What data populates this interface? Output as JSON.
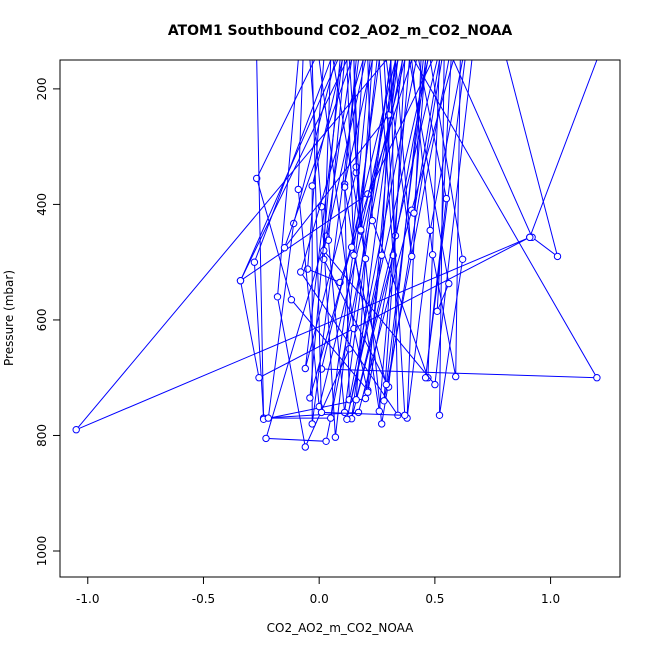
{
  "chart_data": {
    "type": "line",
    "title": "ATOM1 Southbound CO2_AO2_m_CO2_NOAA",
    "xlabel": "CO2_AO2_m_CO2_NOAA",
    "ylabel": "Pressure (mbar)",
    "xlim": [
      -1.12,
      1.3
    ],
    "ylim": [
      1045,
      150
    ],
    "y_reversed": true,
    "grid": false,
    "legend": "none",
    "colors": {
      "series": "#0000ff",
      "axes": "#000000"
    },
    "x_ticks": [
      {
        "value": -1.0,
        "label": "-1.0"
      },
      {
        "value": -0.5,
        "label": "-0.5"
      },
      {
        "value": 0.0,
        "label": "0.0"
      },
      {
        "value": 0.5,
        "label": "0.5"
      },
      {
        "value": 1.0,
        "label": "1.0"
      }
    ],
    "y_ticks": [
      {
        "value": 200,
        "label": "200"
      },
      {
        "value": 400,
        "label": "400"
      },
      {
        "value": 600,
        "label": "600"
      },
      {
        "value": 800,
        "label": "800"
      },
      {
        "value": 1000,
        "label": "1000"
      }
    ],
    "series": [
      {
        "values": [
          [
            -0.09,
            150
          ],
          [
            -0.18,
            560
          ],
          [
            -0.06,
            820
          ],
          [
            0.13,
            650
          ],
          [
            0.31,
            150
          ]
        ]
      },
      {
        "values": [
          [
            0.05,
            150
          ],
          [
            -0.28,
            500
          ],
          [
            -0.24,
            770
          ],
          [
            0.17,
            760
          ],
          [
            0.4,
            410
          ],
          [
            0.58,
            150
          ]
        ]
      },
      {
        "values": [
          [
            -0.02,
            150
          ],
          [
            -0.27,
            355
          ],
          [
            -0.12,
            565
          ],
          [
            0.21,
            722
          ],
          [
            0.33,
            150
          ]
        ]
      },
      {
        "values": [
          [
            0.12,
            150
          ],
          [
            -0.34,
            532
          ],
          [
            -0.26,
            700
          ],
          [
            0.91,
            457
          ],
          [
            1.2,
            150
          ]
        ]
      },
      {
        "values": [
          [
            0.08,
            150
          ],
          [
            -0.34,
            532
          ],
          [
            0.21,
            382
          ],
          [
            0.49,
            150
          ]
        ]
      },
      {
        "values": [
          [
            -0.27,
            150
          ],
          [
            -0.24,
            772
          ],
          [
            0.2,
            736
          ],
          [
            0.36,
            150
          ]
        ]
      },
      {
        "values": [
          [
            0.0,
            150
          ],
          [
            0.15,
            615
          ],
          [
            0.21,
            725
          ],
          [
            0.47,
            150
          ]
        ]
      },
      {
        "values": [
          [
            0.1,
            150
          ],
          [
            -0.06,
            684
          ],
          [
            0.16,
            345
          ],
          [
            0.15,
            150
          ]
        ]
      },
      {
        "values": [
          [
            0.14,
            150
          ],
          [
            0.03,
            455
          ],
          [
            -0.23,
            805
          ],
          [
            0.03,
            810
          ],
          [
            0.36,
            150
          ]
        ]
      },
      {
        "values": [
          [
            0.07,
            150
          ],
          [
            -0.11,
            433
          ],
          [
            -0.22,
            770
          ],
          [
            0.05,
            770
          ],
          [
            0.26,
            150
          ]
        ]
      },
      {
        "values": [
          [
            0.02,
            150
          ],
          [
            -0.05,
            512
          ],
          [
            0.09,
            535
          ],
          [
            0.4,
            150
          ]
        ]
      },
      {
        "values": [
          [
            -0.04,
            150
          ],
          [
            0.01,
            404
          ],
          [
            0.07,
            803
          ],
          [
            0.25,
            150
          ]
        ]
      },
      {
        "values": [
          [
            0.11,
            150
          ],
          [
            0.04,
            462
          ],
          [
            0.11,
            760
          ],
          [
            0.31,
            150
          ]
        ]
      },
      {
        "values": [
          [
            0.19,
            150
          ],
          [
            0.16,
            335
          ],
          [
            0.27,
            780
          ],
          [
            0.53,
            150
          ]
        ]
      },
      {
        "values": [
          [
            0.05,
            150
          ],
          [
            0.02,
            495
          ],
          [
            0.3,
            716
          ],
          [
            0.45,
            150
          ]
        ]
      },
      {
        "values": [
          [
            0.23,
            150
          ],
          [
            0.11,
            365
          ],
          [
            0.13,
            738
          ],
          [
            0.42,
            150
          ]
        ]
      },
      {
        "values": [
          [
            0.16,
            150
          ],
          [
            0.11,
            370
          ],
          [
            0.26,
            758
          ],
          [
            0.39,
            150
          ]
        ]
      },
      {
        "values": [
          [
            -0.07,
            150
          ],
          [
            -0.09,
            374
          ],
          [
            0.0,
            750
          ],
          [
            0.37,
            150
          ]
        ]
      },
      {
        "values": [
          [
            0.21,
            150
          ],
          [
            0.23,
            428
          ],
          [
            0.47,
            700
          ],
          [
            0.52,
            150
          ]
        ]
      },
      {
        "values": [
          [
            0.37,
            150
          ],
          [
            0.33,
            454
          ],
          [
            0.28,
            740
          ],
          [
            0.56,
            150
          ]
        ]
      },
      {
        "values": [
          [
            0.26,
            150
          ],
          [
            0.32,
            488
          ],
          [
            0.14,
            771
          ],
          [
            0.34,
            150
          ]
        ]
      },
      {
        "values": [
          [
            0.12,
            150
          ],
          [
            0.15,
            488
          ],
          [
            0.29,
            712
          ],
          [
            0.46,
            150
          ]
        ]
      },
      {
        "values": [
          [
            0.06,
            150
          ],
          [
            0.2,
            494
          ],
          [
            0.16,
            738
          ],
          [
            0.51,
            150
          ]
        ]
      },
      {
        "values": [
          [
            0.31,
            150
          ],
          [
            0.27,
            488
          ],
          [
            0.12,
            772
          ],
          [
            0.47,
            150
          ]
        ]
      },
      {
        "values": [
          [
            0.4,
            150
          ],
          [
            0.49,
            487
          ],
          [
            0.59,
            698
          ],
          [
            0.61,
            150
          ]
        ]
      },
      {
        "values": [
          [
            0.43,
            150
          ],
          [
            0.55,
            390
          ],
          [
            0.46,
            700
          ],
          [
            0.63,
            150
          ]
        ]
      },
      {
        "values": [
          [
            0.48,
            150
          ],
          [
            0.62,
            495
          ],
          [
            0.52,
            765
          ],
          [
            0.54,
            150
          ]
        ]
      },
      {
        "values": [
          [
            0.62,
            150
          ],
          [
            0.48,
            445
          ],
          [
            0.38,
            770
          ],
          [
            0.44,
            150
          ]
        ]
      },
      {
        "values": [
          [
            0.52,
            150
          ],
          [
            0.41,
            415
          ],
          [
            0.46,
            150
          ]
        ]
      },
      {
        "values": [
          [
            0.66,
            150
          ],
          [
            0.5,
            712
          ],
          [
            0.02,
            480
          ],
          [
            0.2,
            150
          ]
        ]
      },
      {
        "values": [
          [
            0.23,
            150
          ],
          [
            0.18,
            446
          ],
          [
            0.15,
            150
          ]
        ]
      },
      {
        "values": [
          [
            0.39,
            150
          ],
          [
            0.56,
            537
          ],
          [
            0.51,
            585
          ],
          [
            0.57,
            150
          ]
        ]
      },
      {
        "values": [
          [
            0.58,
            150
          ],
          [
            0.92,
            457
          ],
          [
            1.03,
            490
          ],
          [
            0.81,
            150
          ]
        ]
      },
      {
        "values": [
          [
            0.41,
            150
          ],
          [
            1.2,
            700
          ],
          [
            0.01,
            685
          ],
          [
            0.33,
            150
          ]
        ]
      },
      {
        "values": [
          [
            0.29,
            150
          ],
          [
            -1.05,
            790
          ],
          [
            0.91,
            457
          ]
        ]
      },
      {
        "values": [
          [
            0.14,
            150
          ],
          [
            -0.15,
            475
          ],
          [
            0.3,
            245
          ],
          [
            0.33,
            150
          ]
        ]
      },
      {
        "values": [
          [
            0.19,
            150
          ],
          [
            -0.08,
            517
          ],
          [
            0.34,
            765
          ],
          [
            0.31,
            150
          ]
        ]
      },
      {
        "values": [
          [
            -0.03,
            150
          ],
          [
            0.01,
            760
          ],
          [
            0.37,
            765
          ],
          [
            0.28,
            150
          ]
        ]
      },
      {
        "values": [
          [
            0.1,
            150
          ],
          [
            -0.03,
            368
          ],
          [
            -0.03,
            780
          ],
          [
            0.17,
            150
          ]
        ]
      },
      {
        "values": [
          [
            0.33,
            150
          ],
          [
            0.4,
            490
          ],
          [
            0.29,
            150
          ]
        ]
      },
      {
        "values": [
          [
            0.22,
            150
          ],
          [
            0.14,
            474
          ],
          [
            -0.04,
            735
          ],
          [
            0.09,
            150
          ]
        ]
      },
      {
        "values": [
          [
            0.34,
            150
          ],
          [
            0.18,
            444
          ],
          [
            0.13,
            150
          ]
        ]
      }
    ]
  }
}
